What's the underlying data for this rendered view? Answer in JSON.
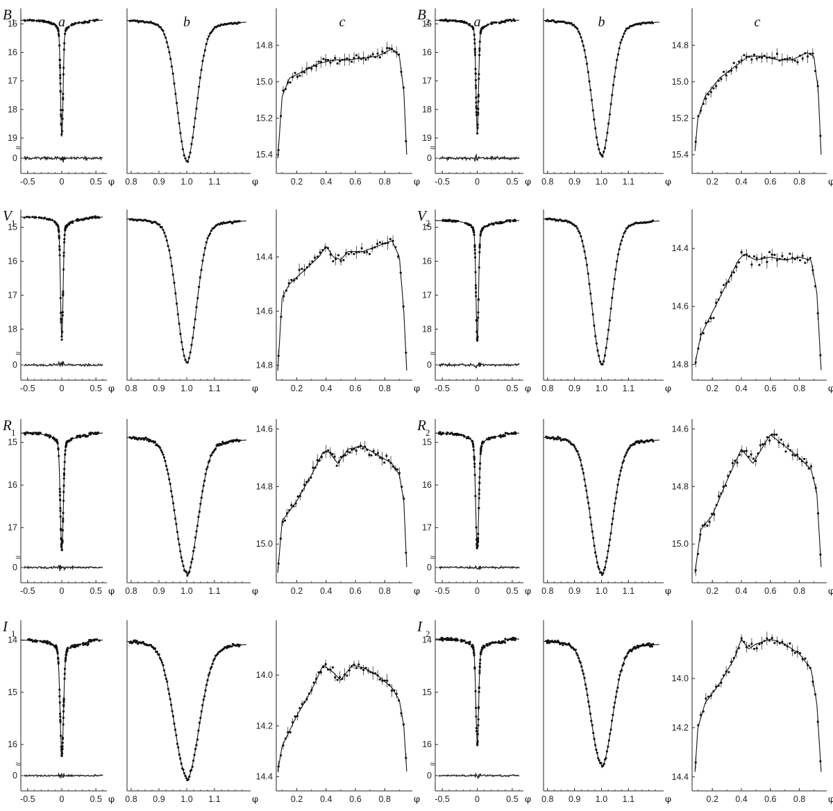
{
  "figure": {
    "column_letters": [
      "a",
      "b",
      "c"
    ],
    "x_symbol": "φ",
    "break_mark": "≈"
  },
  "chart_data": [
    {
      "id": "B1",
      "band": "B",
      "sub": "1",
      "type": "line",
      "col": "a",
      "xticks": [
        "-0.5",
        "0",
        "0.5"
      ],
      "xlim": [
        -0.6,
        0.6
      ],
      "yticks": [
        "15",
        "16",
        "17",
        "18",
        "19"
      ],
      "ylim": [
        14.6,
        19.2
      ],
      "resid_tick": "0",
      "model": {
        "base": 14.87,
        "depth": 18.95,
        "width": 0.018,
        "shoulder": 0.1,
        "asym": 0.25
      },
      "points": 130,
      "resid_amp": 0.12
    },
    {
      "id": "B1b",
      "type": "line",
      "col": "b",
      "xticks": [
        "0.8",
        "0.9",
        "1.0",
        "1.1"
      ],
      "xlim": [
        0.785,
        1.215
      ],
      "ylim": [
        14.6,
        19.2
      ],
      "model": {
        "base": 14.8,
        "depth": 18.95,
        "width": 0.035,
        "shoulder": 0.08,
        "asym": 0.18
      },
      "points": 90
    },
    {
      "id": "B1c",
      "type": "line",
      "col": "c",
      "xticks": [
        "0.2",
        "0.4",
        "0.6",
        "0.8"
      ],
      "xlim": [
        0.06,
        0.96
      ],
      "yticks": [
        "14.8",
        "15.0",
        "15.2",
        "15.4"
      ],
      "ylim": [
        14.62,
        15.48
      ],
      "curve": [
        [
          0.07,
          15.42
        ],
        [
          0.1,
          15.08
        ],
        [
          0.15,
          14.98
        ],
        [
          0.25,
          14.94
        ],
        [
          0.35,
          14.9
        ],
        [
          0.45,
          14.88
        ],
        [
          0.55,
          14.88
        ],
        [
          0.65,
          14.87
        ],
        [
          0.75,
          14.86
        ],
        [
          0.85,
          14.82
        ],
        [
          0.9,
          14.86
        ],
        [
          0.93,
          15.05
        ],
        [
          0.95,
          15.4
        ]
      ],
      "points": 55,
      "scatter": 0.03
    },
    {
      "id": "B2",
      "band": "B",
      "sub": "2",
      "type": "line",
      "col": "a",
      "xticks": [
        "-0.5",
        "0",
        "0.5"
      ],
      "xlim": [
        -0.6,
        0.6
      ],
      "yticks": [
        "15",
        "16",
        "17",
        "18",
        "19"
      ],
      "ylim": [
        14.6,
        19.2
      ],
      "resid_tick": "0",
      "model": {
        "base": 14.87,
        "depth": 18.8,
        "width": 0.018,
        "shoulder": 0.1,
        "asym": 0.25
      },
      "points": 130,
      "resid_amp": 0.12
    },
    {
      "id": "B2b",
      "type": "line",
      "col": "b",
      "xticks": [
        "0.8",
        "0.9",
        "1.0",
        "1.1"
      ],
      "xlim": [
        0.785,
        1.215
      ],
      "ylim": [
        14.6,
        19.2
      ],
      "model": {
        "base": 14.8,
        "depth": 18.8,
        "width": 0.035,
        "shoulder": 0.08,
        "asym": 0.18
      },
      "points": 90
    },
    {
      "id": "B2c",
      "type": "line",
      "col": "c",
      "xticks": [
        "0.2",
        "0.4",
        "0.6",
        "0.8"
      ],
      "xlim": [
        0.06,
        0.96
      ],
      "yticks": [
        "14.8",
        "15.0",
        "15.2",
        "15.4"
      ],
      "ylim": [
        14.62,
        15.48
      ],
      "curve": [
        [
          0.08,
          15.38
        ],
        [
          0.1,
          15.2
        ],
        [
          0.15,
          15.08
        ],
        [
          0.25,
          14.98
        ],
        [
          0.35,
          14.92
        ],
        [
          0.45,
          14.86
        ],
        [
          0.55,
          14.86
        ],
        [
          0.65,
          14.88
        ],
        [
          0.75,
          14.88
        ],
        [
          0.85,
          14.84
        ],
        [
          0.9,
          14.86
        ],
        [
          0.93,
          15.05
        ],
        [
          0.95,
          15.4
        ]
      ],
      "points": 50,
      "scatter": 0.04
    },
    {
      "id": "V1",
      "band": "V",
      "sub": "1",
      "type": "line",
      "col": "a",
      "xticks": [
        "-0.5",
        "0",
        "0.5"
      ],
      "xlim": [
        -0.6,
        0.6
      ],
      "yticks": [
        "15",
        "16",
        "17",
        "18"
      ],
      "ylim": [
        14.6,
        18.6
      ],
      "resid_tick": "0",
      "model": {
        "base": 14.7,
        "depth": 18.25,
        "width": 0.018,
        "shoulder": 0.1,
        "asym": 0.25
      },
      "points": 130,
      "resid_amp": 0.1
    },
    {
      "id": "V1b",
      "type": "line",
      "col": "b",
      "xticks": [
        "0.8",
        "0.9",
        "1.0",
        "1.1"
      ],
      "xlim": [
        0.785,
        1.215
      ],
      "ylim": [
        14.6,
        18.6
      ],
      "model": {
        "base": 14.7,
        "depth": 18.25,
        "width": 0.035,
        "shoulder": 0.08,
        "asym": 0.18
      },
      "points": 90
    },
    {
      "id": "V1c",
      "type": "line",
      "col": "c",
      "xticks": [
        "0.2",
        "0.4",
        "0.6",
        "0.8"
      ],
      "xlim": [
        0.06,
        0.96
      ],
      "yticks": [
        "14.4",
        "14.6",
        "14.8"
      ],
      "ylim": [
        14.24,
        14.84
      ],
      "curve": [
        [
          0.07,
          14.82
        ],
        [
          0.1,
          14.55
        ],
        [
          0.15,
          14.5
        ],
        [
          0.25,
          14.45
        ],
        [
          0.35,
          14.4
        ],
        [
          0.4,
          14.36
        ],
        [
          0.45,
          14.4
        ],
        [
          0.5,
          14.41
        ],
        [
          0.55,
          14.38
        ],
        [
          0.65,
          14.38
        ],
        [
          0.75,
          14.36
        ],
        [
          0.85,
          14.34
        ],
        [
          0.9,
          14.4
        ],
        [
          0.93,
          14.6
        ],
        [
          0.95,
          14.82
        ]
      ],
      "points": 50,
      "scatter": 0.025
    },
    {
      "id": "V2",
      "band": "V",
      "sub": "2",
      "type": "line",
      "col": "a",
      "xticks": [
        "-0.5",
        "0",
        "0.5"
      ],
      "xlim": [
        -0.6,
        0.6
      ],
      "yticks": [
        "15",
        "16",
        "17",
        "18"
      ],
      "ylim": [
        14.6,
        18.6
      ],
      "resid_tick": "0",
      "model": {
        "base": 14.8,
        "depth": 18.3,
        "width": 0.018,
        "shoulder": 0.1,
        "asym": 0.25
      },
      "points": 130,
      "resid_amp": 0.1
    },
    {
      "id": "V2b",
      "type": "line",
      "col": "b",
      "xticks": [
        "0.8",
        "0.9",
        "1.0",
        "1.1"
      ],
      "xlim": [
        0.785,
        1.215
      ],
      "ylim": [
        14.6,
        18.6
      ],
      "model": {
        "base": 14.7,
        "depth": 18.3,
        "width": 0.035,
        "shoulder": 0.08,
        "asym": 0.18
      },
      "points": 90
    },
    {
      "id": "V2c",
      "type": "line",
      "col": "c",
      "xticks": [
        "0.2",
        "0.4",
        "0.6",
        "0.8"
      ],
      "xlim": [
        0.06,
        0.96
      ],
      "yticks": [
        "14.4",
        "14.6",
        "14.8"
      ],
      "ylim": [
        14.28,
        14.84
      ],
      "curve": [
        [
          0.08,
          14.8
        ],
        [
          0.12,
          14.7
        ],
        [
          0.2,
          14.62
        ],
        [
          0.3,
          14.52
        ],
        [
          0.38,
          14.44
        ],
        [
          0.42,
          14.42
        ],
        [
          0.5,
          14.44
        ],
        [
          0.6,
          14.43
        ],
        [
          0.7,
          14.44
        ],
        [
          0.8,
          14.43
        ],
        [
          0.88,
          14.44
        ],
        [
          0.92,
          14.55
        ],
        [
          0.95,
          14.82
        ]
      ],
      "points": 50,
      "scatter": 0.03
    },
    {
      "id": "R1",
      "band": "R",
      "sub": "1",
      "type": "line",
      "col": "a",
      "xticks": [
        "-0.5",
        "0",
        "0.5"
      ],
      "xlim": [
        -0.6,
        0.6
      ],
      "yticks": [
        "15",
        "16",
        "17"
      ],
      "ylim": [
        14.55,
        17.6
      ],
      "resid_tick": "0",
      "model": {
        "base": 14.78,
        "depth": 17.5,
        "width": 0.022,
        "shoulder": 0.12,
        "asym": 0.25
      },
      "points": 140,
      "resid_amp": 0.08
    },
    {
      "id": "R1b",
      "type": "line",
      "col": "b",
      "xticks": [
        "0.8",
        "0.9",
        "1.0",
        "1.1"
      ],
      "xlim": [
        0.785,
        1.215
      ],
      "ylim": [
        14.55,
        17.6
      ],
      "model": {
        "base": 14.8,
        "depth": 17.5,
        "width": 0.04,
        "shoulder": 0.09,
        "asym": 0.2
      },
      "points": 110
    },
    {
      "id": "R1c",
      "type": "line",
      "col": "c",
      "xticks": [
        "0.2",
        "0.4",
        "0.6",
        "0.8"
      ],
      "xlim": [
        0.06,
        0.96
      ],
      "yticks": [
        "14.6",
        "14.8",
        "15.0"
      ],
      "ylim": [
        14.58,
        15.12
      ],
      "curve": [
        [
          0.07,
          15.1
        ],
        [
          0.1,
          14.92
        ],
        [
          0.2,
          14.85
        ],
        [
          0.3,
          14.76
        ],
        [
          0.38,
          14.68
        ],
        [
          0.42,
          14.68
        ],
        [
          0.48,
          14.72
        ],
        [
          0.55,
          14.67
        ],
        [
          0.65,
          14.66
        ],
        [
          0.75,
          14.69
        ],
        [
          0.85,
          14.72
        ],
        [
          0.9,
          14.76
        ],
        [
          0.93,
          14.85
        ],
        [
          0.95,
          15.08
        ]
      ],
      "points": 60,
      "scatter": 0.02
    },
    {
      "id": "R2",
      "band": "R",
      "sub": "2",
      "type": "line",
      "col": "a",
      "xticks": [
        "-0.5",
        "0",
        "0.5"
      ],
      "xlim": [
        -0.6,
        0.6
      ],
      "yticks": [
        "15",
        "16",
        "17"
      ],
      "ylim": [
        14.55,
        17.6
      ],
      "resid_tick": "0",
      "model": {
        "base": 14.78,
        "depth": 17.5,
        "width": 0.022,
        "shoulder": 0.12,
        "asym": 0.25
      },
      "points": 140,
      "resid_amp": 0.08
    },
    {
      "id": "R2b",
      "type": "line",
      "col": "b",
      "xticks": [
        "0.8",
        "0.9",
        "1.0",
        "1.1"
      ],
      "xlim": [
        0.785,
        1.215
      ],
      "ylim": [
        14.55,
        17.6
      ],
      "model": {
        "base": 14.8,
        "depth": 17.5,
        "width": 0.04,
        "shoulder": 0.09,
        "asym": 0.2
      },
      "points": 110
    },
    {
      "id": "R2c",
      "type": "line",
      "col": "c",
      "xticks": [
        "0.2",
        "0.4",
        "0.6",
        "0.8"
      ],
      "xlim": [
        0.06,
        0.96
      ],
      "yticks": [
        "14.6",
        "14.8",
        "15.0"
      ],
      "ylim": [
        14.58,
        15.12
      ],
      "curve": [
        [
          0.08,
          15.1
        ],
        [
          0.12,
          14.95
        ],
        [
          0.2,
          14.9
        ],
        [
          0.3,
          14.78
        ],
        [
          0.4,
          14.67
        ],
        [
          0.48,
          14.72
        ],
        [
          0.55,
          14.66
        ],
        [
          0.6,
          14.62
        ],
        [
          0.7,
          14.66
        ],
        [
          0.8,
          14.7
        ],
        [
          0.88,
          14.74
        ],
        [
          0.92,
          14.82
        ],
        [
          0.95,
          15.08
        ]
      ],
      "points": 55,
      "scatter": 0.03
    },
    {
      "id": "I1",
      "band": "I",
      "sub": "1",
      "type": "line",
      "col": "a",
      "xticks": [
        "-0.5",
        "0",
        "0.5"
      ],
      "xlim": [
        -0.6,
        0.6
      ],
      "yticks": [
        "14",
        "15",
        "16"
      ],
      "ylim": [
        13.7,
        16.3
      ],
      "resid_tick": "0",
      "model": {
        "base": 14.0,
        "depth": 16.15,
        "width": 0.025,
        "shoulder": 0.12,
        "asym": 0.3
      },
      "points": 140,
      "resid_amp": 0.07
    },
    {
      "id": "I1b",
      "type": "line",
      "col": "b",
      "xticks": [
        "0.8",
        "0.9",
        "1.0",
        "1.1"
      ],
      "xlim": [
        0.785,
        1.215
      ],
      "ylim": [
        13.7,
        16.3
      ],
      "model": {
        "base": 13.95,
        "depth": 16.15,
        "width": 0.045,
        "shoulder": 0.09,
        "asym": 0.2
      },
      "points": 110
    },
    {
      "id": "I1c",
      "type": "line",
      "col": "c",
      "xticks": [
        "0.2",
        "0.4",
        "0.6",
        "0.8"
      ],
      "xlim": [
        0.06,
        0.96
      ],
      "yticks": [
        "14.0",
        "14.2",
        "14.4"
      ],
      "ylim": [
        13.8,
        14.44
      ],
      "curve": [
        [
          0.07,
          14.38
        ],
        [
          0.1,
          14.28
        ],
        [
          0.2,
          14.16
        ],
        [
          0.3,
          14.06
        ],
        [
          0.38,
          13.96
        ],
        [
          0.45,
          13.99
        ],
        [
          0.5,
          14.02
        ],
        [
          0.58,
          13.96
        ],
        [
          0.65,
          13.97
        ],
        [
          0.75,
          14.0
        ],
        [
          0.85,
          14.05
        ],
        [
          0.9,
          14.1
        ],
        [
          0.93,
          14.2
        ],
        [
          0.95,
          14.38
        ]
      ],
      "points": 55,
      "scatter": 0.02
    },
    {
      "id": "I2",
      "band": "I",
      "sub": "2",
      "type": "line",
      "col": "a",
      "xticks": [
        "-0.5",
        "0",
        "0.5"
      ],
      "xlim": [
        -0.6,
        0.6
      ],
      "yticks": [
        "14",
        "15",
        "16"
      ],
      "ylim": [
        13.7,
        16.3
      ],
      "resid_tick": "0",
      "model": {
        "base": 13.98,
        "depth": 15.95,
        "width": 0.02,
        "shoulder": 0.11,
        "asym": 0.3
      },
      "points": 140,
      "resid_amp": 0.07
    },
    {
      "id": "I2b",
      "type": "line",
      "col": "b",
      "xticks": [
        "0.8",
        "0.9",
        "1.0",
        "1.1"
      ],
      "xlim": [
        0.785,
        1.215
      ],
      "ylim": [
        13.7,
        16.3
      ],
      "model": {
        "base": 13.95,
        "depth": 15.95,
        "width": 0.04,
        "shoulder": 0.09,
        "asym": 0.2
      },
      "points": 110
    },
    {
      "id": "I2c",
      "type": "line",
      "col": "c",
      "xticks": [
        "0.2",
        "0.4",
        "0.6",
        "0.8"
      ],
      "xlim": [
        0.06,
        0.96
      ],
      "yticks": [
        "14.0",
        "14.2",
        "14.4"
      ],
      "ylim": [
        13.78,
        14.44
      ],
      "curve": [
        [
          0.08,
          14.38
        ],
        [
          0.1,
          14.2
        ],
        [
          0.15,
          14.1
        ],
        [
          0.25,
          14.02
        ],
        [
          0.35,
          13.92
        ],
        [
          0.4,
          13.84
        ],
        [
          0.45,
          13.88
        ],
        [
          0.5,
          13.86
        ],
        [
          0.6,
          13.84
        ],
        [
          0.7,
          13.86
        ],
        [
          0.8,
          13.9
        ],
        [
          0.88,
          13.96
        ],
        [
          0.92,
          14.1
        ],
        [
          0.95,
          14.38
        ]
      ],
      "points": 50,
      "scatter": 0.025
    }
  ]
}
